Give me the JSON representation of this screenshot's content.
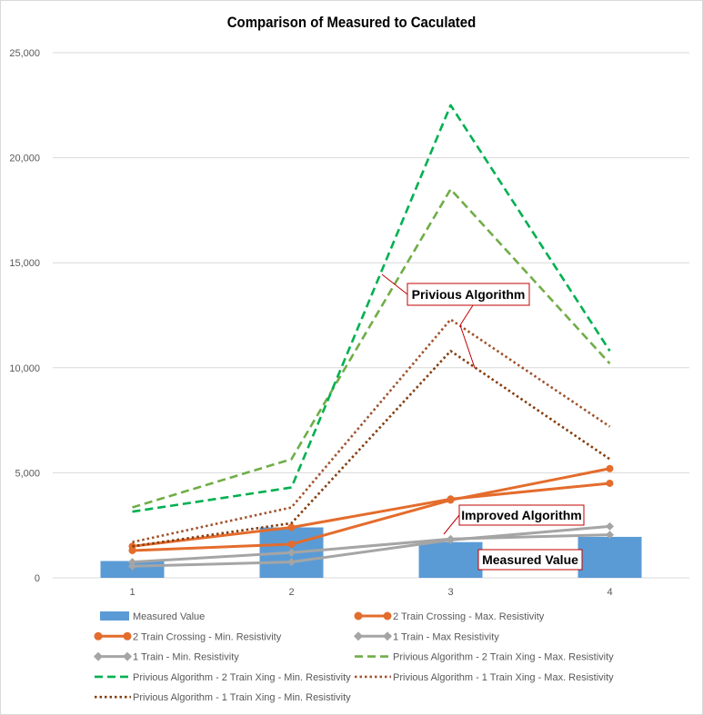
{
  "chart_data": {
    "type": "bar+line",
    "title": "Comparison of Measured to Caculated",
    "categories": [
      "1",
      "2",
      "3",
      "4"
    ],
    "ylim": [
      0,
      25000
    ],
    "yticks": [
      "0",
      "5,000",
      "10,000",
      "15,000",
      "20,000",
      "25,000"
    ],
    "ytick_values": [
      0,
      5000,
      10000,
      15000,
      20000,
      25000
    ],
    "grid": true,
    "legend_position": "bottom",
    "series": [
      {
        "name": "Measured Value",
        "type": "bar",
        "color": "#5b9bd5",
        "values": [
          800,
          2400,
          1700,
          1950
        ]
      },
      {
        "name": "2 Train Crossing - Max. Resistivity",
        "type": "line",
        "style": "solid-marker-circle",
        "color": "#e46c2c",
        "values": [
          1300,
          1600,
          3700,
          5200
        ]
      },
      {
        "name": "2 Train Crossing - Min. Resistivity",
        "type": "line",
        "style": "solid-marker-circle",
        "color": "#e46c2c",
        "values": [
          1500,
          2400,
          3750,
          4500
        ]
      },
      {
        "name": "1 Train - Max Resistivity",
        "type": "line",
        "style": "solid-marker-diamond",
        "color": "#a5a5a5",
        "values": [
          550,
          750,
          1800,
          2450
        ]
      },
      {
        "name": "1 Train - Min. Resistivity",
        "type": "line",
        "style": "solid-marker-diamond",
        "color": "#a5a5a5",
        "values": [
          750,
          1200,
          1850,
          2050
        ]
      },
      {
        "name": "Privious Algorithm - 2 Train Xing - Max. Resistivity",
        "type": "line",
        "style": "dashed",
        "color": "#70ad47",
        "values": [
          3350,
          5650,
          18500,
          10200
        ]
      },
      {
        "name": "Privious Algorithm - 2 Train Xing - Min. Resistivity",
        "type": "line",
        "style": "dashed",
        "color": "#00b050",
        "values": [
          3150,
          4300,
          22500,
          10800
        ]
      },
      {
        "name": "Privious Algorithm - 1 Train Xing - Max. Resistivity",
        "type": "line",
        "style": "dotted",
        "color": "#a0522d",
        "values": [
          1700,
          3350,
          12300,
          7200
        ]
      },
      {
        "name": "Privious Algorithm - 1 Train Xing - Min. Resistivity",
        "type": "line",
        "style": "dotted",
        "color": "#843c0c",
        "values": [
          1500,
          2600,
          10800,
          5650
        ]
      }
    ],
    "annotations": [
      {
        "text": "Privious Algorithm"
      },
      {
        "text": "Improved Algorithm"
      },
      {
        "text": "Measured Value"
      }
    ]
  }
}
